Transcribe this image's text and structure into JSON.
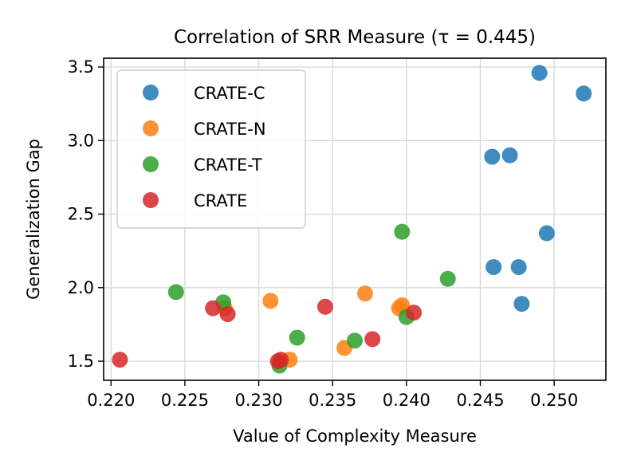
{
  "chart_data": {
    "type": "scatter",
    "title": "Correlation of SRR Measure (τ = 0.445)",
    "xlabel": "Value of Complexity Measure",
    "ylabel": "Generalization Gap",
    "xlim": [
      0.2195,
      0.2535
    ],
    "ylim": [
      1.37,
      3.56
    ],
    "xticks": [
      0.22,
      0.225,
      0.23,
      0.235,
      0.24,
      0.245,
      0.25
    ],
    "xtick_labels": [
      "0.220",
      "0.225",
      "0.230",
      "0.235",
      "0.240",
      "0.245",
      "0.250"
    ],
    "yticks": [
      1.5,
      2.0,
      2.5,
      3.0,
      3.5
    ],
    "ytick_labels": [
      "1.5",
      "2.0",
      "2.5",
      "3.0",
      "3.5"
    ],
    "grid": true,
    "legend_position": "top-left",
    "series": [
      {
        "name": "CRATE-C",
        "color": "#1f77b4",
        "points": [
          [
            0.249,
            3.46
          ],
          [
            0.252,
            3.32
          ],
          [
            0.2458,
            2.89
          ],
          [
            0.247,
            2.9
          ],
          [
            0.2495,
            2.37
          ],
          [
            0.2459,
            2.14
          ],
          [
            0.2476,
            2.14
          ],
          [
            0.2478,
            1.89
          ]
        ]
      },
      {
        "name": "CRATE-N",
        "color": "#ff7f0e",
        "points": [
          [
            0.2308,
            1.91
          ],
          [
            0.2372,
            1.96
          ],
          [
            0.2395,
            1.86
          ],
          [
            0.2397,
            1.88
          ],
          [
            0.2321,
            1.51
          ],
          [
            0.2358,
            1.59
          ],
          [
            0.2277,
            1.86
          ]
        ]
      },
      {
        "name": "CRATE-T",
        "color": "#2ca02c",
        "points": [
          [
            0.2397,
            2.38
          ],
          [
            0.2428,
            2.06
          ],
          [
            0.2244,
            1.97
          ],
          [
            0.2276,
            1.9
          ],
          [
            0.2326,
            1.66
          ],
          [
            0.2365,
            1.64
          ],
          [
            0.24,
            1.8
          ],
          [
            0.2314,
            1.47
          ]
        ]
      },
      {
        "name": "CRATE",
        "color": "#d62728",
        "points": [
          [
            0.2206,
            1.51
          ],
          [
            0.2269,
            1.86
          ],
          [
            0.2279,
            1.82
          ],
          [
            0.2345,
            1.87
          ],
          [
            0.2377,
            1.65
          ],
          [
            0.2405,
            1.83
          ],
          [
            0.2313,
            1.5
          ],
          [
            0.2315,
            1.51
          ]
        ]
      }
    ]
  }
}
